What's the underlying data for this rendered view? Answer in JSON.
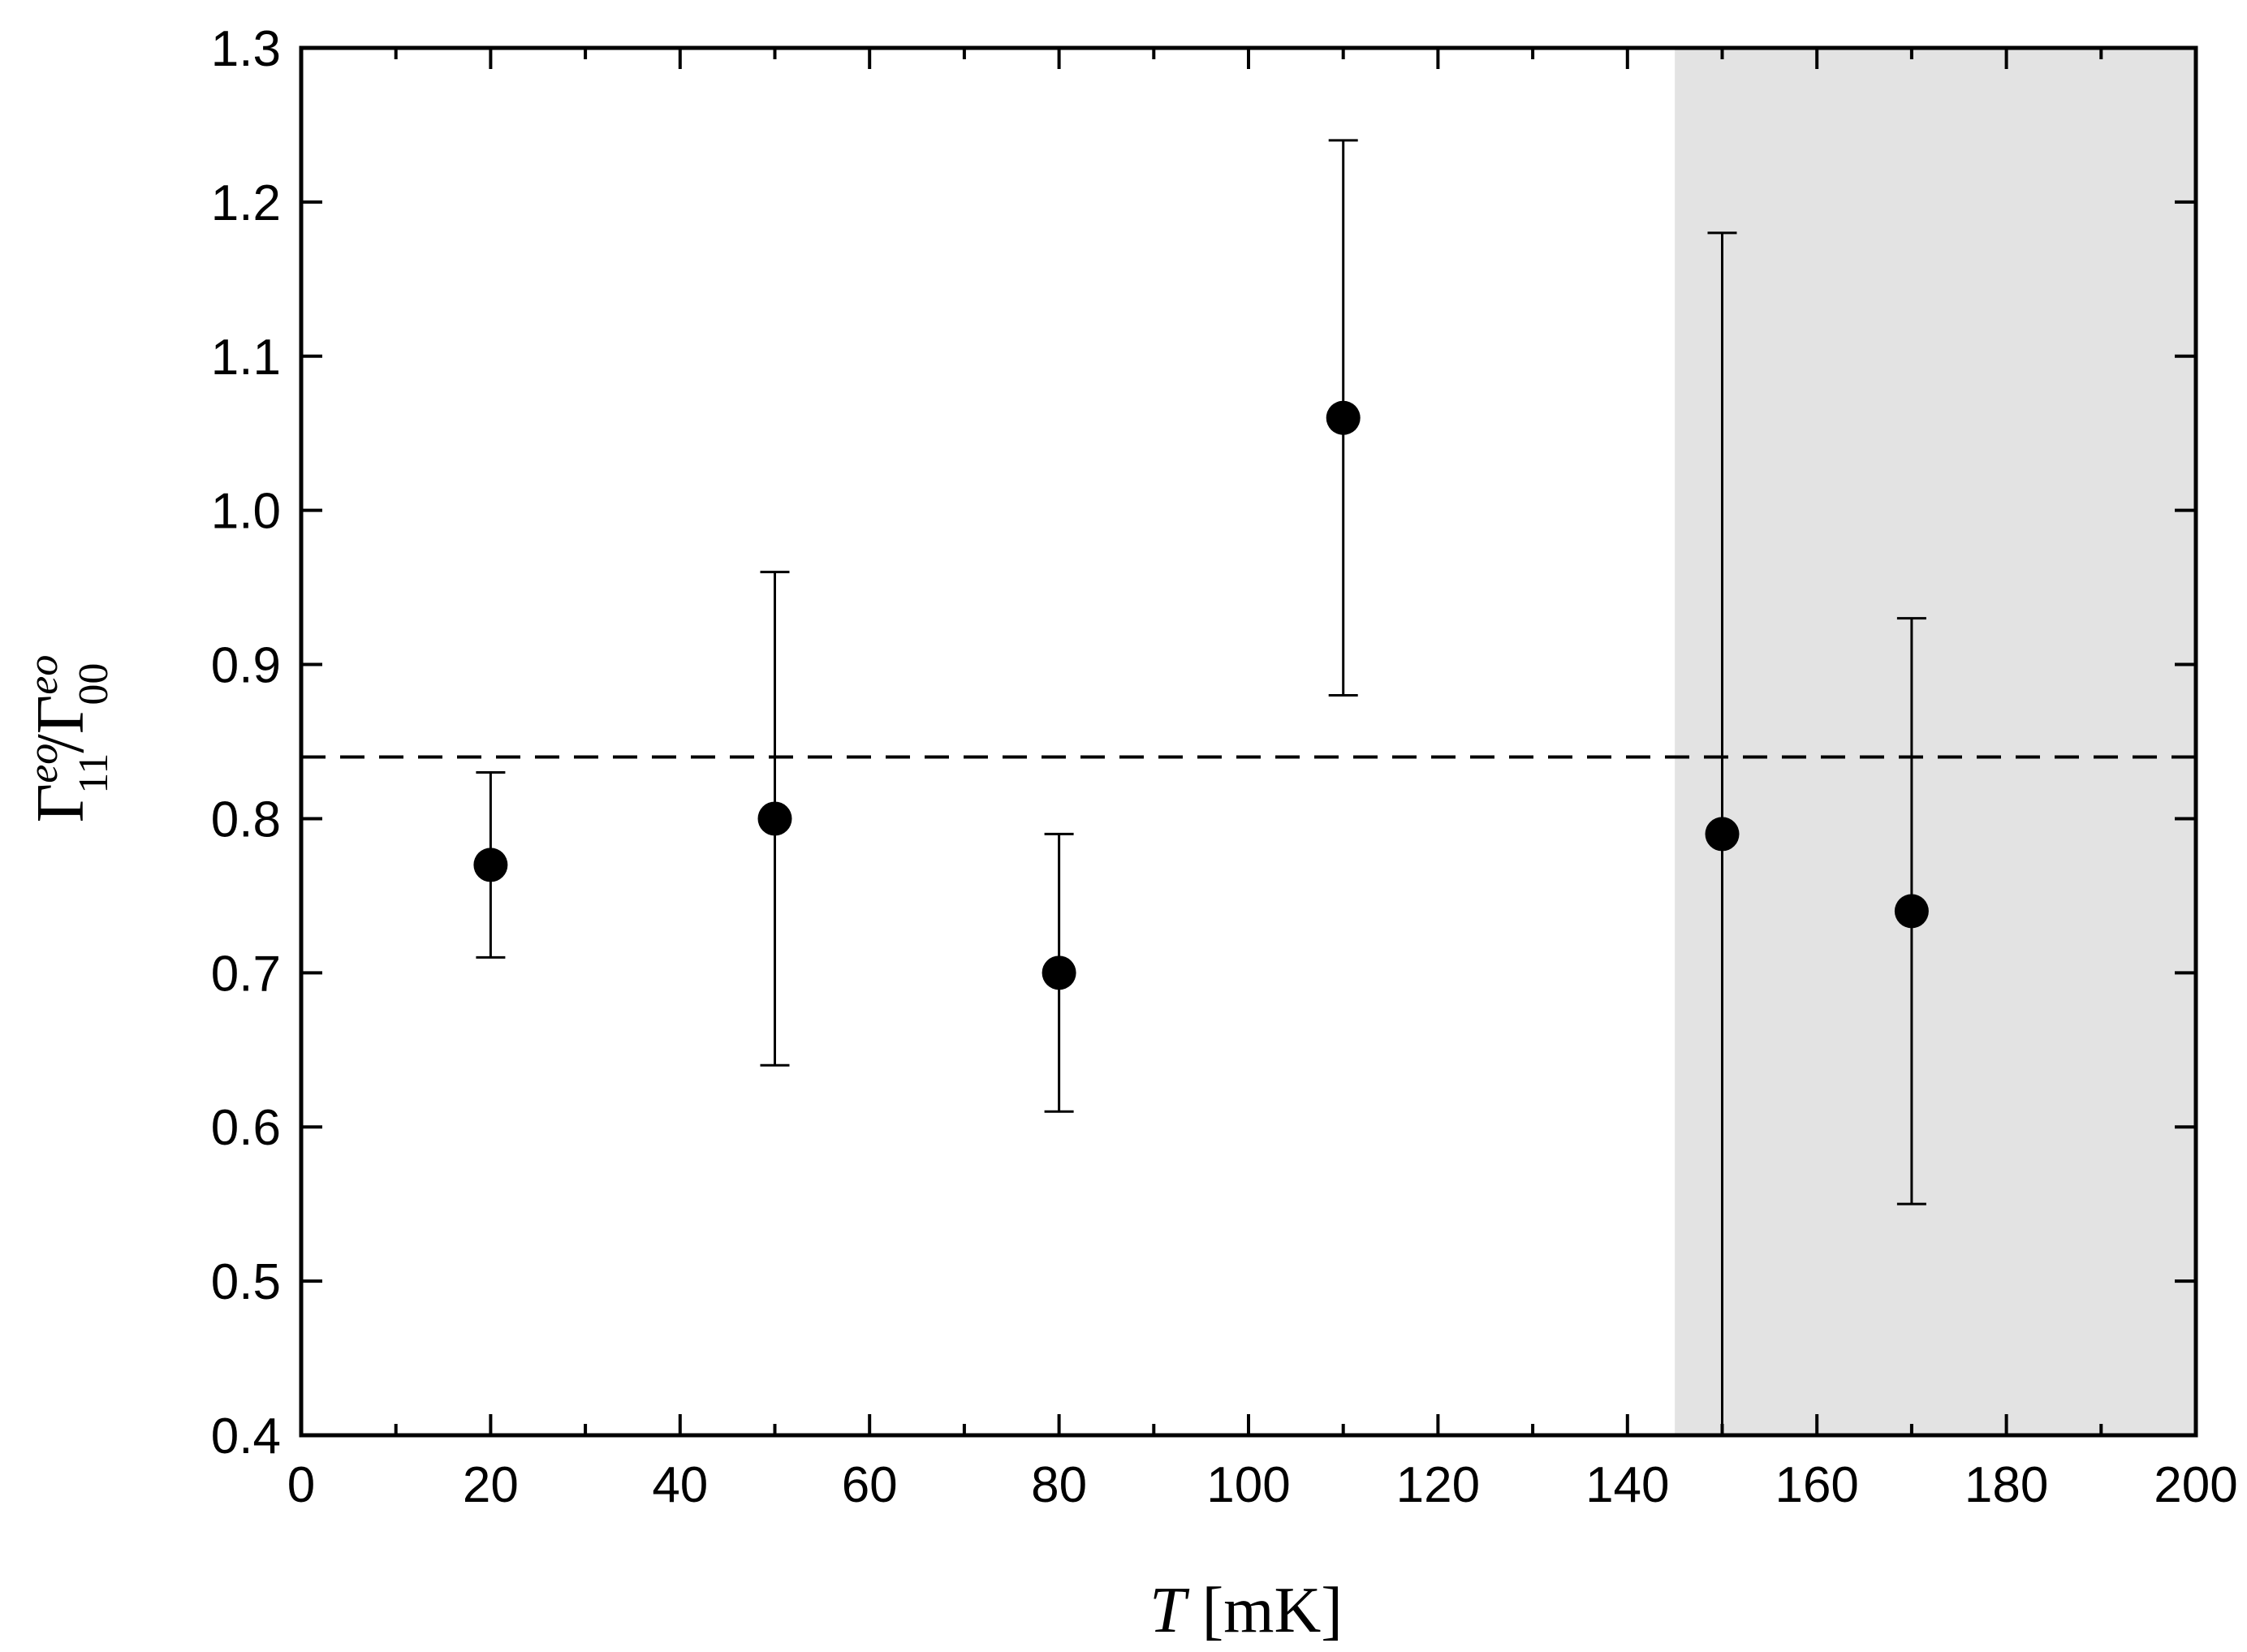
{
  "chart_data": {
    "type": "scatter",
    "xlabel": {
      "italic": "T",
      "rest": " [mK]"
    },
    "ylabel": {
      "g1": "Γ",
      "sup1": "eo",
      "sub1": "11",
      "slash": "/",
      "g2": "Γ",
      "sup2": "eo",
      "sub2": "00"
    },
    "xlim": [
      0,
      200
    ],
    "ylim": [
      0.4,
      1.3
    ],
    "xticks": [
      0,
      20,
      40,
      60,
      80,
      100,
      120,
      140,
      160,
      180,
      200
    ],
    "xtick_labels": [
      "0",
      "20",
      "40",
      "60",
      "80",
      "100",
      "120",
      "140",
      "160",
      "180",
      "200"
    ],
    "xminor_step": 10,
    "yticks": [
      0.4,
      0.5,
      0.6,
      0.7,
      0.8,
      0.9,
      1.0,
      1.1,
      1.2,
      1.3
    ],
    "ytick_labels": [
      "0.4",
      "0.5",
      "0.6",
      "0.7",
      "0.8",
      "0.9",
      "1.0",
      "1.1",
      "1.2",
      "1.3"
    ],
    "grid": false,
    "legend": "none",
    "points": [
      {
        "x": 20,
        "y": 0.77,
        "err_low": 0.71,
        "err_high": 0.83
      },
      {
        "x": 50,
        "y": 0.8,
        "err_low": 0.64,
        "err_high": 0.96
      },
      {
        "x": 80,
        "y": 0.7,
        "err_low": 0.61,
        "err_high": 0.79
      },
      {
        "x": 110,
        "y": 1.06,
        "err_low": 0.88,
        "err_high": 1.24
      },
      {
        "x": 150,
        "y": 0.79,
        "err_low": 0.4,
        "err_high": 1.18
      },
      {
        "x": 170,
        "y": 0.74,
        "err_low": 0.55,
        "err_high": 0.93
      }
    ],
    "reference_line": {
      "y": 0.84,
      "style": "dashed"
    },
    "shaded_region": {
      "x_from": 145,
      "x_to": 200,
      "color": "#e3e3e3"
    },
    "marker_color": "#000000"
  }
}
